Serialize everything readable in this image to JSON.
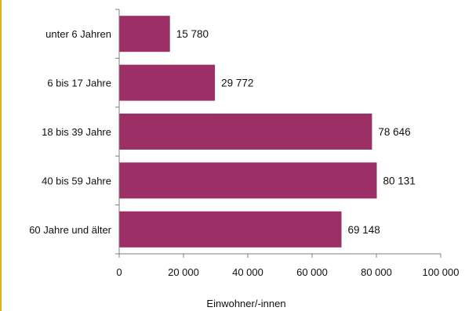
{
  "chart_data": {
    "type": "bar",
    "orientation": "horizontal",
    "categories": [
      "unter 6 Jahren",
      "6 bis 17 Jahre",
      "18 bis 39 Jahre",
      "40 bis 59 Jahre",
      "60 Jahre und älter"
    ],
    "values": [
      15780,
      29772,
      78646,
      80131,
      69148
    ],
    "value_labels": [
      "15 780",
      "29 772",
      "78 646",
      "80 131",
      "69 148"
    ],
    "x_ticks": [
      0,
      20000,
      40000,
      60000,
      80000,
      100000
    ],
    "x_tick_labels": [
      "0",
      "20 000",
      "40 000",
      "60 000",
      "80 000",
      "100 000"
    ],
    "xlim": [
      0,
      100000
    ],
    "xlabel": "Einwohner/-innen",
    "ylabel": "",
    "title": "",
    "grid": false,
    "legend": "none",
    "colors": {
      "bar": "#9b2f66",
      "axis": "#7f7f7f",
      "left_rule": "#e6b400"
    }
  }
}
